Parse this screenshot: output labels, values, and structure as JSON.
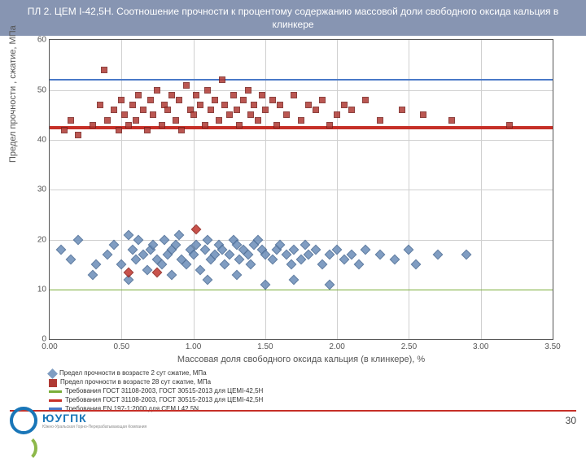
{
  "title": "ПЛ 2. ЦЕМ I-42,5Н. Соотношение прочности к процентому содержанию массовой доли свободного оксида кальция в клинкере",
  "chart": {
    "type": "scatter",
    "xlim": [
      0,
      3.5
    ],
    "ylim": [
      0,
      60
    ],
    "xticks": [
      "0.00",
      "0.50",
      "1.00",
      "1.50",
      "2.00",
      "2.50",
      "3.00",
      "3.50"
    ],
    "yticks": [
      0,
      10,
      20,
      30,
      40,
      50,
      60
    ],
    "xlabel": "Массовая доля свободного оксида кальция (в клинкере), %",
    "ylabel": "Предел прочности , сжатие, МПа",
    "grid_color": "#d0d0d0",
    "background_color": "#ffffff",
    "series_blue": {
      "color": "#6b8db8",
      "points": [
        [
          0.08,
          18
        ],
        [
          0.15,
          16
        ],
        [
          0.2,
          20
        ],
        [
          0.32,
          15
        ],
        [
          0.4,
          17
        ],
        [
          0.45,
          19
        ],
        [
          0.5,
          15
        ],
        [
          0.55,
          21
        ],
        [
          0.58,
          18
        ],
        [
          0.6,
          16
        ],
        [
          0.62,
          20
        ],
        [
          0.65,
          17
        ],
        [
          0.68,
          14
        ],
        [
          0.7,
          18
        ],
        [
          0.72,
          19
        ],
        [
          0.75,
          16
        ],
        [
          0.78,
          15
        ],
        [
          0.8,
          20
        ],
        [
          0.82,
          17
        ],
        [
          0.85,
          18
        ],
        [
          0.88,
          19
        ],
        [
          0.9,
          21
        ],
        [
          0.92,
          16
        ],
        [
          0.95,
          15
        ],
        [
          0.98,
          18
        ],
        [
          1.0,
          17
        ],
        [
          1.02,
          19
        ],
        [
          1.05,
          14
        ],
        [
          1.08,
          18
        ],
        [
          1.1,
          20
        ],
        [
          1.12,
          16
        ],
        [
          1.15,
          17
        ],
        [
          1.18,
          19
        ],
        [
          1.2,
          18
        ],
        [
          1.22,
          15
        ],
        [
          1.25,
          17
        ],
        [
          1.28,
          20
        ],
        [
          1.3,
          19
        ],
        [
          1.32,
          16
        ],
        [
          1.35,
          18
        ],
        [
          1.38,
          17
        ],
        [
          1.4,
          15
        ],
        [
          1.42,
          19
        ],
        [
          1.45,
          20
        ],
        [
          1.48,
          18
        ],
        [
          1.5,
          17
        ],
        [
          1.55,
          16
        ],
        [
          1.58,
          18
        ],
        [
          1.6,
          19
        ],
        [
          1.65,
          17
        ],
        [
          1.68,
          15
        ],
        [
          1.7,
          18
        ],
        [
          1.75,
          16
        ],
        [
          1.78,
          19
        ],
        [
          1.8,
          17
        ],
        [
          1.85,
          18
        ],
        [
          1.9,
          15
        ],
        [
          1.95,
          17
        ],
        [
          2.0,
          18
        ],
        [
          2.05,
          16
        ],
        [
          2.1,
          17
        ],
        [
          2.15,
          15
        ],
        [
          2.2,
          18
        ],
        [
          2.3,
          17
        ],
        [
          2.4,
          16
        ],
        [
          2.5,
          18
        ],
        [
          2.55,
          15
        ],
        [
          2.7,
          17
        ],
        [
          2.9,
          17
        ],
        [
          0.3,
          13
        ],
        [
          0.55,
          12
        ],
        [
          0.85,
          13
        ],
        [
          1.1,
          12
        ],
        [
          1.3,
          13
        ],
        [
          1.5,
          11
        ],
        [
          1.7,
          12
        ],
        [
          1.95,
          11
        ]
      ]
    },
    "series_blue_outlier": {
      "points": [
        [
          1.02,
          22
        ]
      ]
    },
    "series_red_diamond": {
      "points": [
        [
          0.55,
          13.5
        ],
        [
          0.75,
          13.5
        ]
      ]
    },
    "series_red_square": {
      "color": "#b03a34",
      "points": [
        [
          0.1,
          42
        ],
        [
          0.15,
          44
        ],
        [
          0.2,
          41
        ],
        [
          0.3,
          43
        ],
        [
          0.35,
          47
        ],
        [
          0.38,
          54
        ],
        [
          0.4,
          44
        ],
        [
          0.45,
          46
        ],
        [
          0.48,
          42
        ],
        [
          0.5,
          48
        ],
        [
          0.52,
          45
        ],
        [
          0.55,
          43
        ],
        [
          0.58,
          47
        ],
        [
          0.6,
          44
        ],
        [
          0.62,
          49
        ],
        [
          0.65,
          46
        ],
        [
          0.68,
          42
        ],
        [
          0.7,
          48
        ],
        [
          0.72,
          45
        ],
        [
          0.75,
          50
        ],
        [
          0.78,
          43
        ],
        [
          0.8,
          47
        ],
        [
          0.82,
          46
        ],
        [
          0.85,
          49
        ],
        [
          0.88,
          44
        ],
        [
          0.9,
          48
        ],
        [
          0.92,
          42
        ],
        [
          0.95,
          51
        ],
        [
          0.98,
          46
        ],
        [
          1.0,
          45
        ],
        [
          1.02,
          49
        ],
        [
          1.05,
          47
        ],
        [
          1.08,
          43
        ],
        [
          1.1,
          50
        ],
        [
          1.12,
          46
        ],
        [
          1.15,
          48
        ],
        [
          1.18,
          44
        ],
        [
          1.2,
          52
        ],
        [
          1.22,
          47
        ],
        [
          1.25,
          45
        ],
        [
          1.28,
          49
        ],
        [
          1.3,
          46
        ],
        [
          1.32,
          43
        ],
        [
          1.35,
          48
        ],
        [
          1.38,
          50
        ],
        [
          1.4,
          45
        ],
        [
          1.42,
          47
        ],
        [
          1.45,
          44
        ],
        [
          1.48,
          49
        ],
        [
          1.5,
          46
        ],
        [
          1.55,
          48
        ],
        [
          1.58,
          43
        ],
        [
          1.6,
          47
        ],
        [
          1.65,
          45
        ],
        [
          1.7,
          49
        ],
        [
          1.75,
          44
        ],
        [
          1.8,
          47
        ],
        [
          1.85,
          46
        ],
        [
          1.9,
          48
        ],
        [
          1.95,
          43
        ],
        [
          2.0,
          45
        ],
        [
          2.05,
          47
        ],
        [
          2.1,
          46
        ],
        [
          2.2,
          48
        ],
        [
          2.3,
          44
        ],
        [
          2.45,
          46
        ],
        [
          2.6,
          45
        ],
        [
          2.8,
          44
        ],
        [
          3.2,
          43
        ]
      ]
    },
    "hlines": [
      {
        "y": 10,
        "color": "#7aae3a",
        "width": 1
      },
      {
        "y": 42.5,
        "color": "#c62f27",
        "width": 4
      },
      {
        "y": 52,
        "color": "#4a79c8",
        "width": 2
      }
    ]
  },
  "legend": {
    "items": [
      {
        "swatch": "diamond",
        "color": "#6b8db8",
        "label": "Предел прочности в возрасте 2 сут сжатие, МПа"
      },
      {
        "swatch": "square",
        "color": "#b03a34",
        "label": "Предел прочности в возрасте 28 сут сжатие, МПа"
      },
      {
        "swatch": "line",
        "color": "#7aae3a",
        "label": "Требования ГОСТ 31108-2003, ГОСТ 30515-2013 для ЦЕМI-42,5Н"
      },
      {
        "swatch": "line",
        "color": "#c62f27",
        "label": "Требования ГОСТ 31108-2003, ГОСТ 30515-2013 для ЦЕМI-42,5Н"
      },
      {
        "swatch": "line",
        "color": "#4a79c8",
        "label": "Требования EN 197-1:2000 для CEM I 42,5N"
      }
    ]
  },
  "page_number": "30",
  "logo": {
    "text": "ЮУГПК",
    "sub": "Южно-Уральская Горно-Перерабатывающая Компания"
  }
}
